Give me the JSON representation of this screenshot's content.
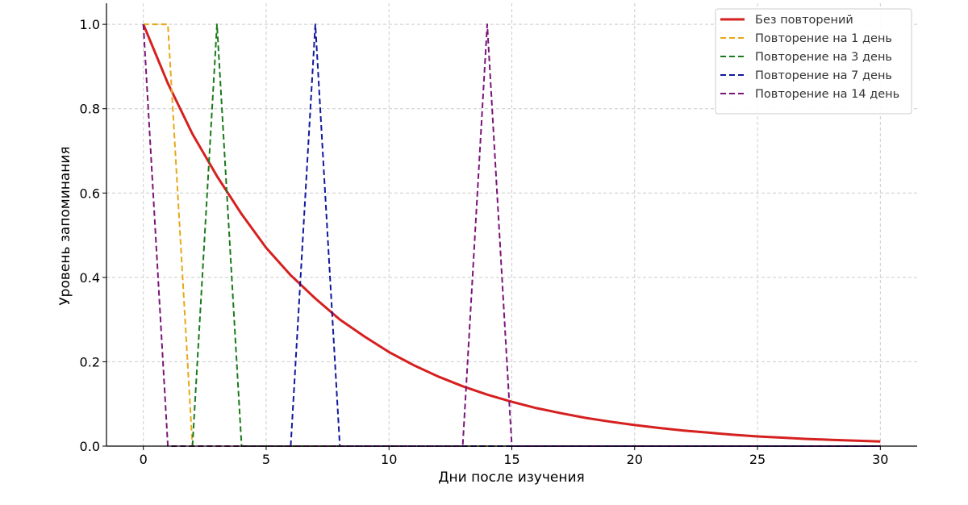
{
  "chart_data": {
    "type": "line",
    "xlabel": "Дни после изучения",
    "ylabel": "Уровень запоминания",
    "xlim": [
      -1.5,
      31.5
    ],
    "ylim": [
      0,
      1.05
    ],
    "xticks": [
      0,
      5,
      10,
      15,
      20,
      25,
      30
    ],
    "yticks": [
      0.0,
      0.2,
      0.4,
      0.6,
      0.8,
      1.0
    ],
    "xtick_labels": [
      "0",
      "5",
      "10",
      "15",
      "20",
      "25",
      "30"
    ],
    "ytick_labels": [
      "0.0",
      "0.2",
      "0.4",
      "0.6",
      "0.8",
      "1.0"
    ],
    "grid": true,
    "legend_position": "top-right",
    "series": [
      {
        "name": "Без повторений",
        "color": "#d62020",
        "style": "solid",
        "x": [
          0,
          1,
          2,
          3,
          4,
          5,
          6,
          7,
          8,
          9,
          10,
          11,
          12,
          13,
          14,
          15,
          16,
          17,
          18,
          19,
          20,
          21,
          22,
          23,
          24,
          25,
          26,
          27,
          28,
          29,
          30
        ],
        "y": [
          1.0,
          0.86,
          0.74,
          0.64,
          0.55,
          0.47,
          0.405,
          0.35,
          0.3,
          0.26,
          0.223,
          0.192,
          0.165,
          0.142,
          0.122,
          0.105,
          0.09,
          0.078,
          0.067,
          0.058,
          0.05,
          0.043,
          0.037,
          0.032,
          0.027,
          0.023,
          0.02,
          0.017,
          0.015,
          0.013,
          0.011
        ]
      },
      {
        "name": "Повторение на 1 день",
        "color": "#e6a817",
        "style": "dashed",
        "x": [
          0,
          1,
          2,
          30
        ],
        "y": [
          1.0,
          1.0,
          0.0,
          0.0
        ]
      },
      {
        "name": "Повторение на 3 день",
        "color": "#1a7a1a",
        "style": "dashed",
        "x": [
          2,
          3,
          4,
          30
        ],
        "y": [
          0.0,
          1.0,
          0.0,
          0.0
        ]
      },
      {
        "name": "Повторение на 7 день",
        "color": "#10189c",
        "style": "dashed",
        "x": [
          6,
          7,
          8,
          30
        ],
        "y": [
          0.0,
          1.0,
          0.0,
          0.0
        ]
      },
      {
        "name": "Повторение на 14 день",
        "color": "#7a1478",
        "style": "dashed",
        "x": [
          0,
          1,
          13,
          14,
          15,
          30
        ],
        "y": [
          1.0,
          0.0,
          0.0,
          1.0,
          0.0,
          0.0
        ]
      }
    ]
  }
}
